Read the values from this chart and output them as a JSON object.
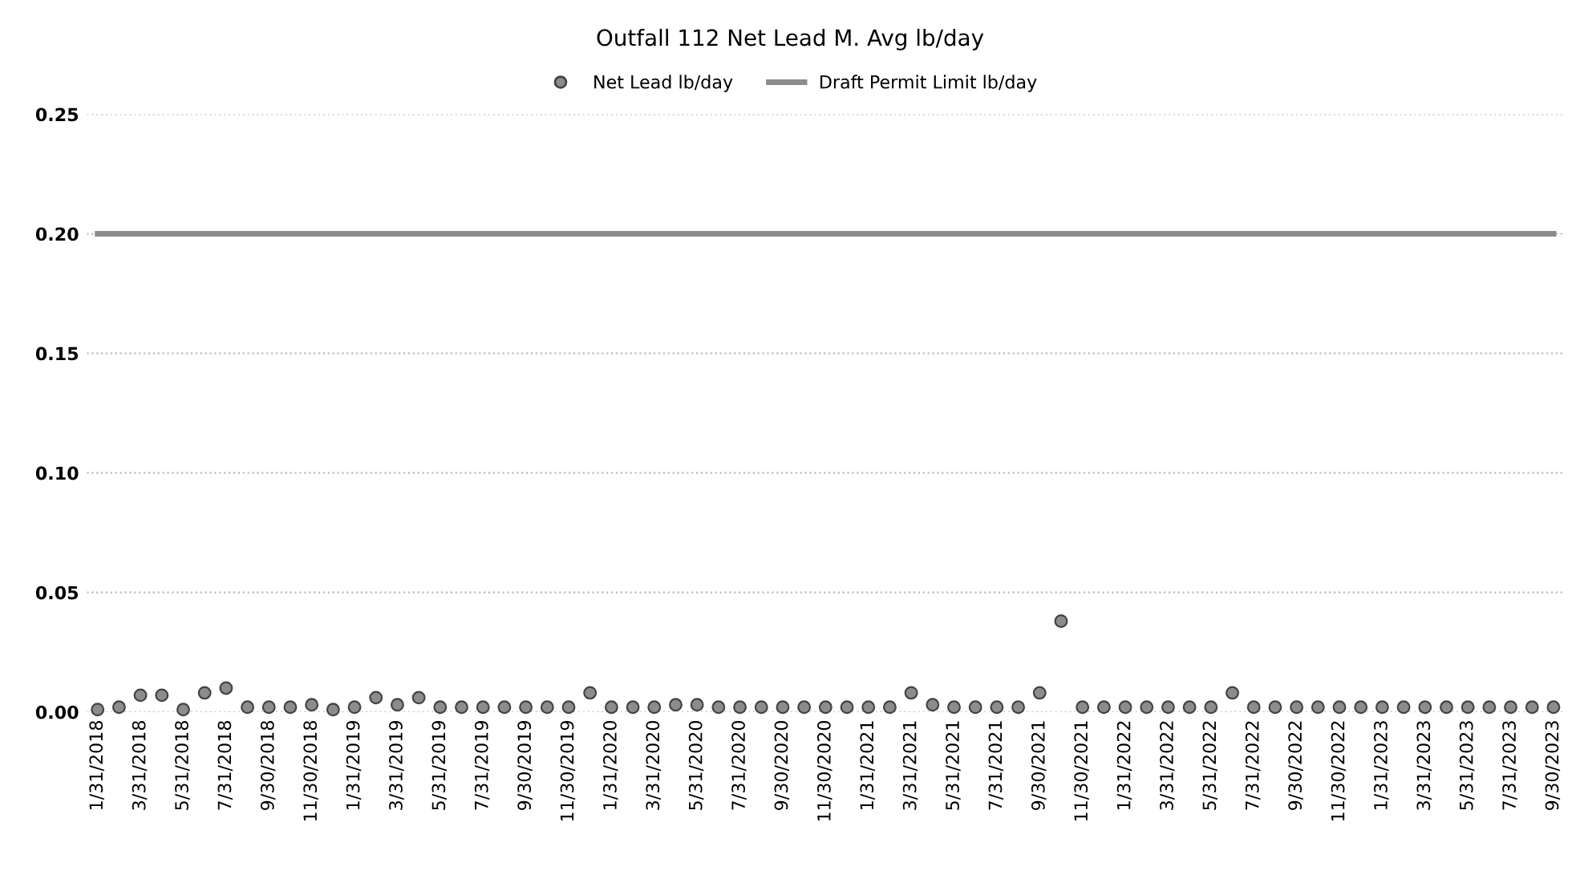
{
  "chart_data": {
    "type": "scatter",
    "title": "Outfall 112 Net Lead M. Avg lb/day",
    "categories": [
      "1/31/2018",
      null,
      "3/31/2018",
      null,
      "5/31/2018",
      null,
      "7/31/2018",
      null,
      "9/30/2018",
      null,
      "11/30/2018",
      null,
      "1/31/2019",
      null,
      "3/31/2019",
      null,
      "5/31/2019",
      null,
      "7/31/2019",
      null,
      "9/30/2019",
      null,
      "11/30/2019",
      null,
      "1/31/2020",
      null,
      "3/31/2020",
      null,
      "5/31/2020",
      null,
      "7/31/2020",
      null,
      "9/30/2020",
      null,
      "11/30/2020",
      null,
      "1/31/2021",
      null,
      "3/31/2021",
      null,
      "5/31/2021",
      null,
      "7/31/2021",
      null,
      "9/30/2021",
      null,
      "11/30/2021",
      null,
      "1/31/2022",
      null,
      "3/31/2022",
      null,
      "5/31/2022",
      null,
      "7/31/2022",
      null,
      "9/30/2022",
      null,
      "11/30/2022",
      null,
      "1/31/2023",
      null,
      "3/31/2023",
      null,
      "5/31/2023",
      null,
      "7/31/2023",
      null,
      "9/30/2023"
    ],
    "series": [
      {
        "name": "Net Lead lb/day",
        "color": "#8c8c8c",
        "marker": "circle",
        "values": [
          0.001,
          0.002,
          0.007,
          0.007,
          0.001,
          0.008,
          0.01,
          0.002,
          0.002,
          0.002,
          0.003,
          0.001,
          0.002,
          0.006,
          0.003,
          0.006,
          0.002,
          0.002,
          0.002,
          0.002,
          0.002,
          0.002,
          0.002,
          0.008,
          0.002,
          0.002,
          0.002,
          0.003,
          0.003,
          0.002,
          0.002,
          0.002,
          0.002,
          0.002,
          0.002,
          0.002,
          0.002,
          0.002,
          0.008,
          0.003,
          0.002,
          0.002,
          0.002,
          0.002,
          0.008,
          0.038,
          0.002,
          0.002,
          0.002,
          0.002,
          0.002,
          0.002,
          0.002,
          0.008,
          0.002,
          0.002,
          0.002,
          0.002,
          0.002,
          0.002,
          0.002,
          0.002,
          0.002,
          0.002,
          0.002,
          0.002,
          0.002,
          0.002,
          0.002
        ]
      },
      {
        "name": "Draft Permit Limit lb/day",
        "type": "line",
        "color": "#8c8c8c",
        "marker": "none",
        "line_style": "solid",
        "values": [
          0.2,
          0.2,
          0.2,
          0.2,
          0.2,
          0.2,
          0.2,
          0.2,
          0.2,
          0.2,
          0.2,
          0.2,
          0.2,
          0.2,
          0.2,
          0.2,
          0.2,
          0.2,
          0.2,
          0.2,
          0.2,
          0.2,
          0.2,
          0.2,
          0.2,
          0.2,
          0.2,
          0.2,
          0.2,
          0.2,
          0.2,
          0.2,
          0.2,
          0.2,
          0.2,
          0.2,
          0.2,
          0.2,
          0.2,
          0.2,
          0.2,
          0.2,
          0.2,
          0.2,
          0.2,
          0.2,
          0.2,
          0.2,
          0.2,
          0.2,
          0.2,
          0.2,
          0.2,
          0.2,
          0.2,
          0.2,
          0.2,
          0.2,
          0.2,
          0.2,
          0.2,
          0.2,
          0.2,
          0.2,
          0.2,
          0.2,
          0.2,
          0.2,
          0.2
        ]
      }
    ],
    "ylim": [
      0,
      0.25
    ],
    "yticks": [
      {
        "value": 0,
        "label": "0.00"
      },
      {
        "value": 0.05,
        "label": "0.05"
      },
      {
        "value": 0.1,
        "label": "0.10"
      },
      {
        "value": 0.15,
        "label": "0.15"
      },
      {
        "value": 0.2,
        "label": "0.20"
      },
      {
        "value": 0.25,
        "label": "0.25"
      }
    ],
    "grid": "y",
    "legend": "top"
  }
}
